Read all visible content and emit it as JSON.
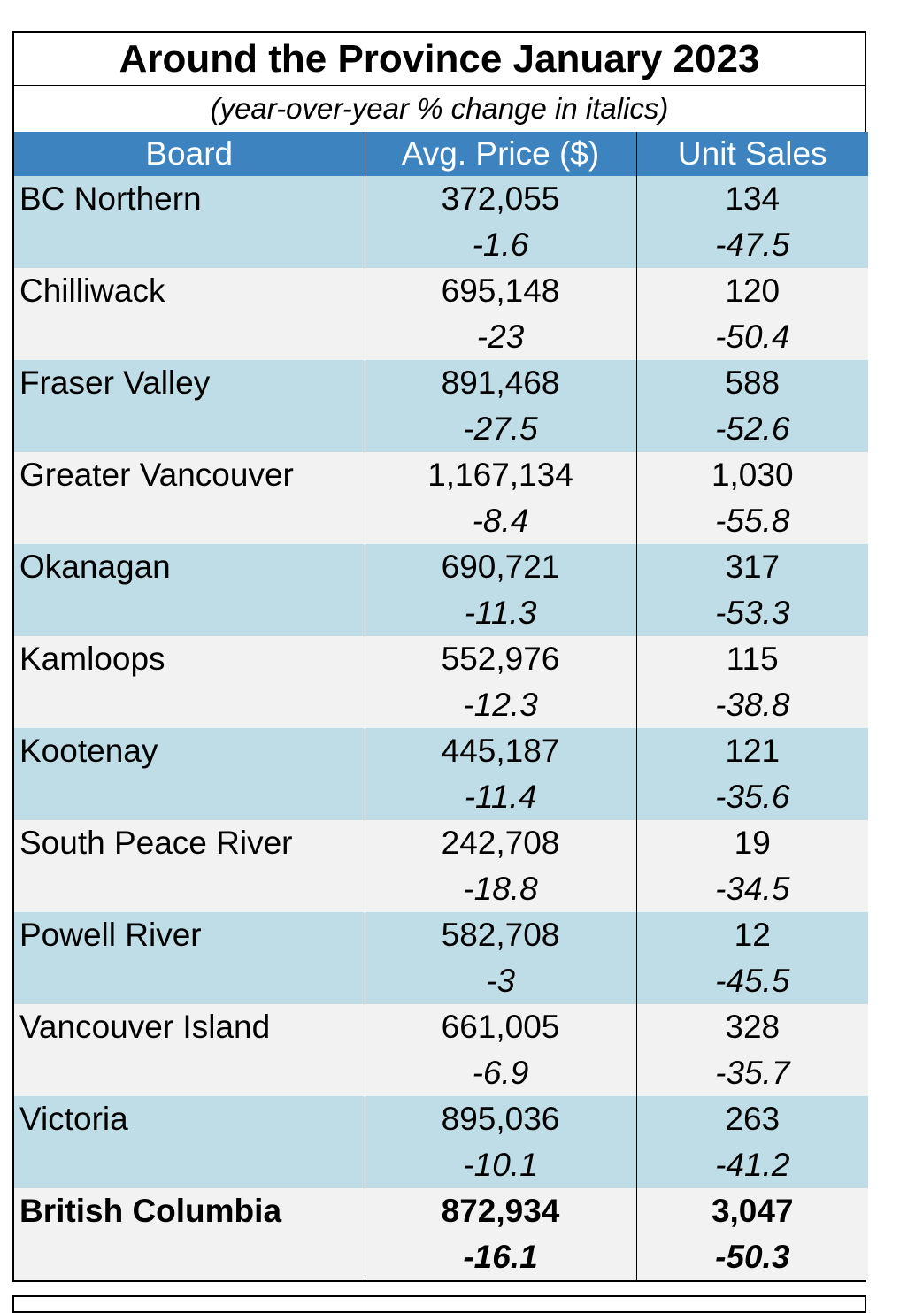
{
  "chart_data": {
    "type": "table",
    "title": "Around the Province January 2023",
    "subtitle": "(year-over-year % change in italics)",
    "columns": [
      "Board",
      "Avg. Price ($)",
      "Unit Sales"
    ],
    "rows": [
      {
        "board": "BC Northern",
        "price": "372,055",
        "price_pct": "-1.6",
        "sales": "134",
        "sales_pct": "-47.5"
      },
      {
        "board": "Chilliwack",
        "price": "695,148",
        "price_pct": "-23",
        "sales": "120",
        "sales_pct": "-50.4"
      },
      {
        "board": "Fraser Valley",
        "price": "891,468",
        "price_pct": "-27.5",
        "sales": "588",
        "sales_pct": "-52.6"
      },
      {
        "board": "Greater Vancouver",
        "price": "1,167,134",
        "price_pct": "-8.4",
        "sales": "1,030",
        "sales_pct": "-55.8"
      },
      {
        "board": "Okanagan",
        "price": "690,721",
        "price_pct": "-11.3",
        "sales": "317",
        "sales_pct": "-53.3"
      },
      {
        "board": "Kamloops",
        "price": "552,976",
        "price_pct": "-12.3",
        "sales": "115",
        "sales_pct": "-38.8"
      },
      {
        "board": "Kootenay",
        "price": "445,187",
        "price_pct": "-11.4",
        "sales": "121",
        "sales_pct": "-35.6"
      },
      {
        "board": "South Peace River",
        "price": "242,708",
        "price_pct": "-18.8",
        "sales": "19",
        "sales_pct": "-34.5"
      },
      {
        "board": "Powell River",
        "price": "582,708",
        "price_pct": "-3",
        "sales": "12",
        "sales_pct": "-45.5"
      },
      {
        "board": "Vancouver Island",
        "price": "661,005",
        "price_pct": "-6.9",
        "sales": "328",
        "sales_pct": "-35.7"
      },
      {
        "board": "Victoria",
        "price": "895,036",
        "price_pct": "-10.1",
        "sales": "263",
        "sales_pct": "-41.2"
      },
      {
        "board": "British Columbia",
        "price": "872,934",
        "price_pct": "-16.1",
        "sales": "3,047",
        "sales_pct": "-50.3"
      }
    ],
    "total_row": "British Columbia"
  },
  "colors": {
    "header_bg": "#3c83bf",
    "row_blue": "#bfdde7",
    "row_grey": "#f2f2f2"
  }
}
